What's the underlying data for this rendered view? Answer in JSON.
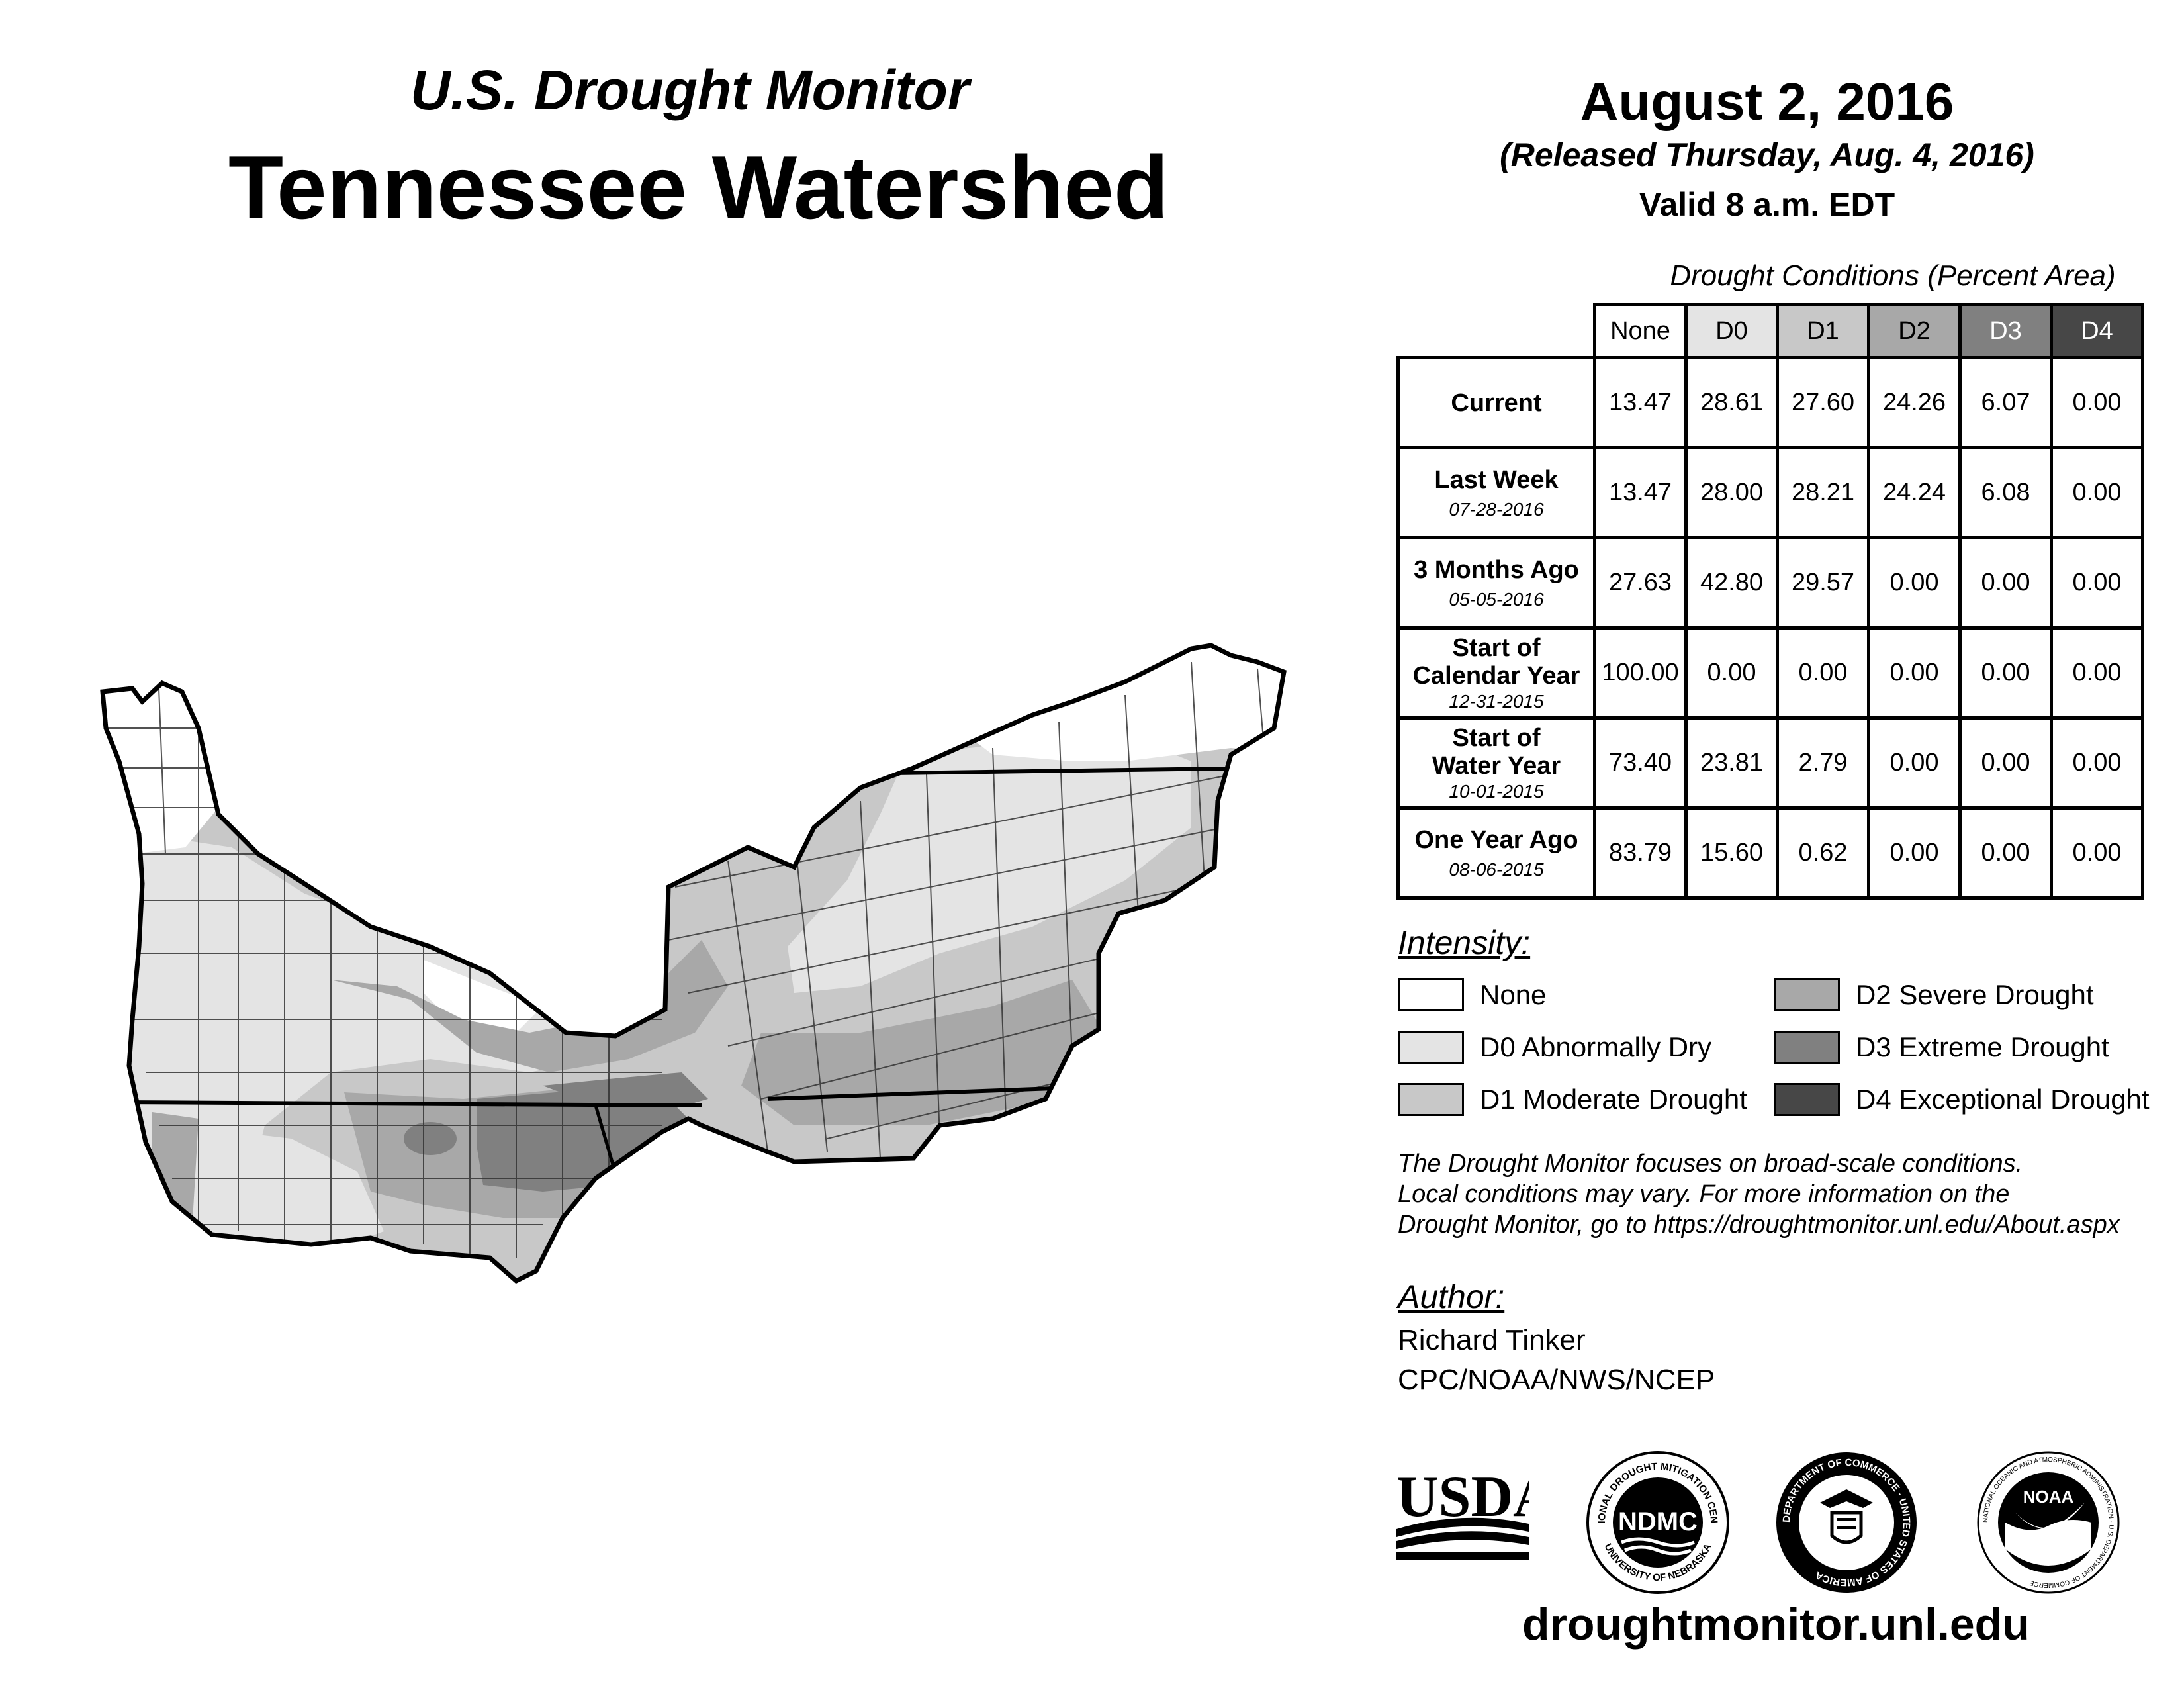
{
  "header": {
    "subtitle": "U.S. Drought Monitor",
    "title": "Tennessee Watershed",
    "date": "August 2, 2016",
    "released": "(Released Thursday, Aug. 4, 2016)",
    "valid": "Valid 8 a.m. EDT"
  },
  "table": {
    "caption": "Drought Conditions (Percent Area)",
    "columns": [
      "None",
      "D0",
      "D1",
      "D2",
      "D3",
      "D4"
    ],
    "rows": [
      {
        "label": "Current",
        "label2": "",
        "date": "",
        "values": [
          "13.47",
          "28.61",
          "27.60",
          "24.26",
          "6.07",
          "0.00"
        ]
      },
      {
        "label": "Last Week",
        "label2": "",
        "date": "07-28-2016",
        "values": [
          "13.47",
          "28.00",
          "28.21",
          "24.24",
          "6.08",
          "0.00"
        ]
      },
      {
        "label": "3 Months Ago",
        "label2": "",
        "date": "05-05-2016",
        "values": [
          "27.63",
          "42.80",
          "29.57",
          "0.00",
          "0.00",
          "0.00"
        ]
      },
      {
        "label": "Start of",
        "label2": "Calendar Year",
        "date": "12-31-2015",
        "values": [
          "100.00",
          "0.00",
          "0.00",
          "0.00",
          "0.00",
          "0.00"
        ]
      },
      {
        "label": "Start of",
        "label2": "Water Year",
        "date": "10-01-2015",
        "values": [
          "73.40",
          "23.81",
          "2.79",
          "0.00",
          "0.00",
          "0.00"
        ]
      },
      {
        "label": "One Year Ago",
        "label2": "",
        "date": "08-06-2015",
        "values": [
          "83.79",
          "15.60",
          "0.62",
          "0.00",
          "0.00",
          "0.00"
        ]
      }
    ]
  },
  "legend": {
    "title": "Intensity:",
    "items": [
      {
        "label": "None",
        "color": "#ffffff"
      },
      {
        "label": "D0 Abnormally Dry",
        "color": "#e4e4e4"
      },
      {
        "label": "D1 Moderate Drought",
        "color": "#c8c8c8"
      },
      {
        "label": "D2 Severe Drought",
        "color": "#a8a8a8"
      },
      {
        "label": "D3 Extreme Drought",
        "color": "#808080"
      },
      {
        "label": "D4 Exceptional Drought",
        "color": "#474747"
      }
    ]
  },
  "note": {
    "line1": "The Drought Monitor focuses on broad-scale conditions.",
    "line2": "Local conditions may vary. For more information on the",
    "line3": "Drought Monitor, go to https://droughtmonitor.unl.edu/About.aspx"
  },
  "author": {
    "title": "Author:",
    "name": "Richard Tinker",
    "org": "CPC/NOAA/NWS/NCEP"
  },
  "logos": {
    "usda": "USDA",
    "ndmc": "NDMC",
    "ndmc_ring_top": "NATIONAL DROUGHT MITIGATION CENTER",
    "ndmc_ring_bottom": "UNIVERSITY OF NEBRASKA",
    "doc_ring": "DEPARTMENT OF COMMERCE · UNITED STATES OF AMERICA",
    "noaa": "NOAA",
    "noaa_ring": "NATIONAL OCEANIC AND ATMOSPHERIC ADMINISTRATION · U.S. DEPARTMENT OF COMMERCE"
  },
  "footer": {
    "url": "droughtmonitor.unl.edu"
  }
}
